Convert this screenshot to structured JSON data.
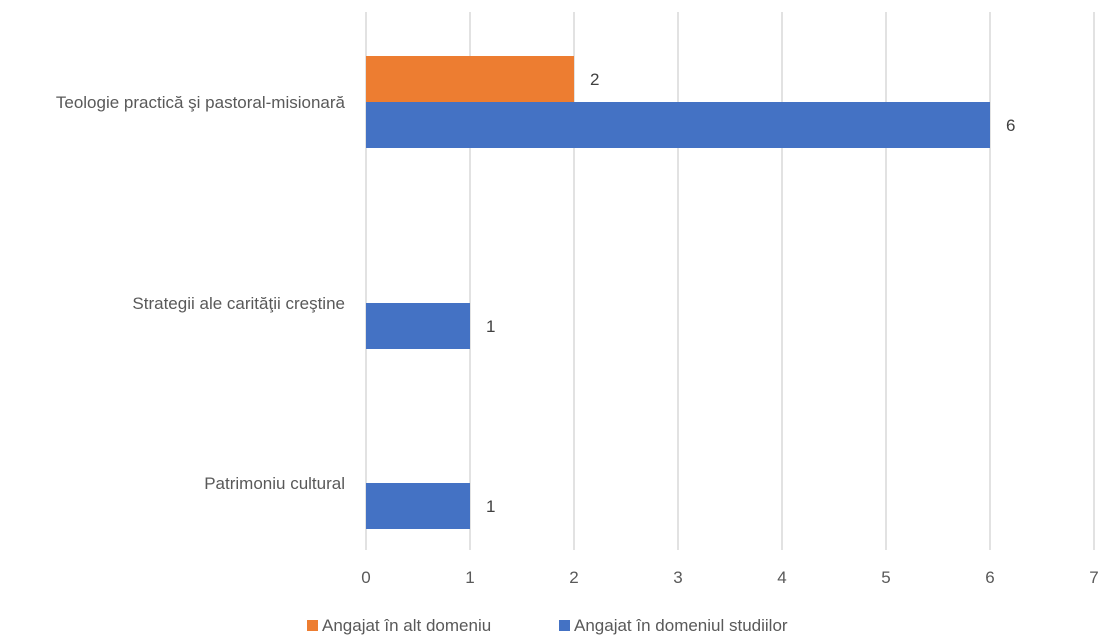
{
  "chart_data": {
    "type": "bar",
    "orientation": "horizontal",
    "categories": [
      "Teologie practică şi pastoral-misionară",
      "Strategii ale carităţii creştine",
      "Patrimoniu cultural"
    ],
    "series": [
      {
        "name": "Angajat în alt domeniu",
        "color": "#ED7D31",
        "values": [
          2,
          null,
          null
        ]
      },
      {
        "name": "Angajat în domeniul studiilor",
        "color": "#4472C4",
        "values": [
          6,
          1,
          1
        ]
      }
    ],
    "xlim": [
      0,
      7
    ],
    "ticks": [
      0,
      1,
      2,
      3,
      4,
      5,
      6,
      7
    ],
    "grid": true,
    "legend_position": "bottom",
    "title": "",
    "xlabel": "",
    "ylabel": ""
  }
}
